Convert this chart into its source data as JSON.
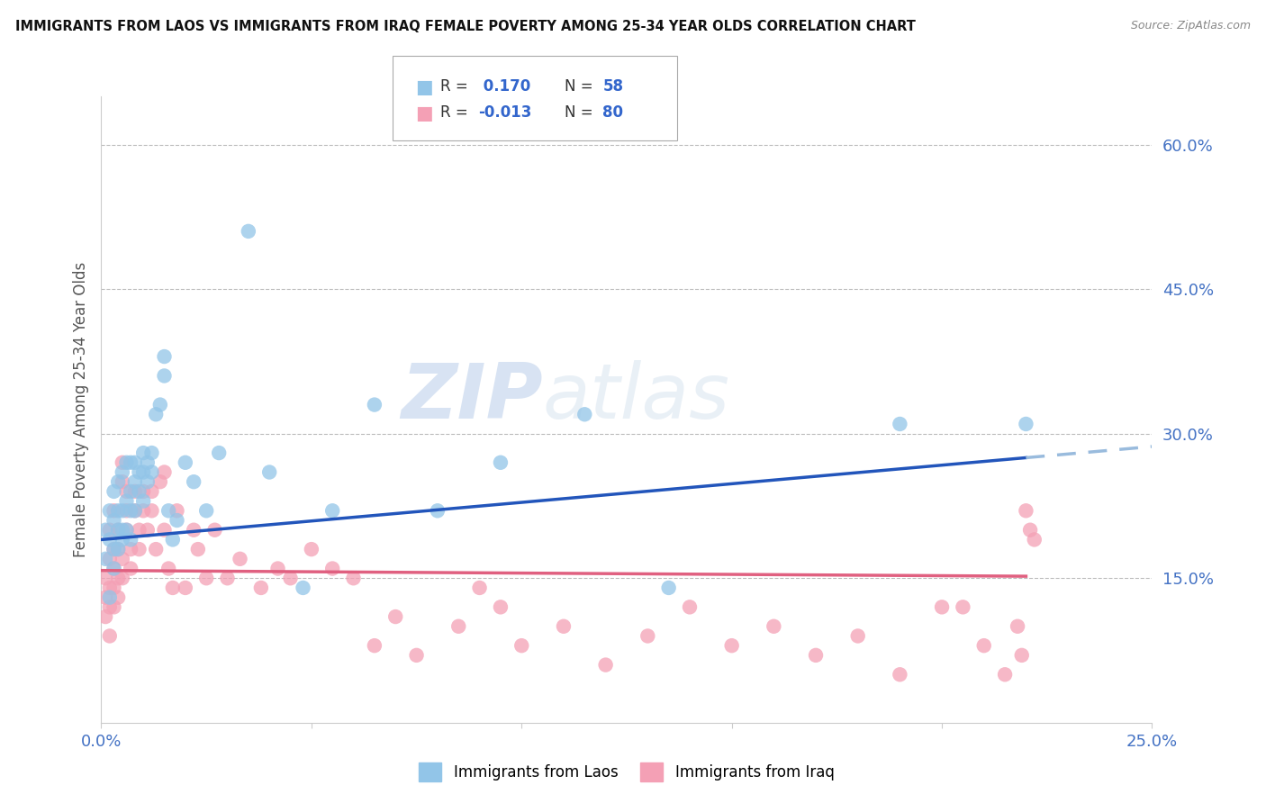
{
  "title": "IMMIGRANTS FROM LAOS VS IMMIGRANTS FROM IRAQ FEMALE POVERTY AMONG 25-34 YEAR OLDS CORRELATION CHART",
  "source": "Source: ZipAtlas.com",
  "ylabel": "Female Poverty Among 25-34 Year Olds",
  "xlim": [
    0.0,
    0.25
  ],
  "ylim": [
    0.0,
    0.65
  ],
  "right_yticks": [
    0.6,
    0.45,
    0.3,
    0.15
  ],
  "right_yticklabels": [
    "60.0%",
    "45.0%",
    "30.0%",
    "15.0%"
  ],
  "grid_yticks": [
    0.6,
    0.45,
    0.3,
    0.15
  ],
  "legend_r1": "R =  0.170",
  "legend_n1": "N = 58",
  "legend_r2": "R = -0.013",
  "legend_n2": "N = 80",
  "series1_color": "#92C5E8",
  "series2_color": "#F4A0B5",
  "line1_color": "#2255BB",
  "line2_color": "#E06080",
  "line1_dash_color": "#99BBDD",
  "watermark_zip": "ZIP",
  "watermark_atlas": "atlas",
  "laos_x": [
    0.001,
    0.001,
    0.002,
    0.002,
    0.002,
    0.003,
    0.003,
    0.003,
    0.003,
    0.004,
    0.004,
    0.004,
    0.004,
    0.005,
    0.005,
    0.005,
    0.005,
    0.006,
    0.006,
    0.006,
    0.007,
    0.007,
    0.007,
    0.007,
    0.008,
    0.008,
    0.008,
    0.009,
    0.009,
    0.01,
    0.01,
    0.01,
    0.011,
    0.011,
    0.012,
    0.012,
    0.013,
    0.014,
    0.015,
    0.015,
    0.016,
    0.017,
    0.018,
    0.02,
    0.022,
    0.025,
    0.028,
    0.035,
    0.04,
    0.048,
    0.055,
    0.065,
    0.08,
    0.095,
    0.115,
    0.135,
    0.19,
    0.22
  ],
  "laos_y": [
    0.17,
    0.2,
    0.13,
    0.19,
    0.22,
    0.18,
    0.21,
    0.16,
    0.24,
    0.2,
    0.22,
    0.25,
    0.18,
    0.2,
    0.22,
    0.26,
    0.19,
    0.23,
    0.27,
    0.2,
    0.22,
    0.24,
    0.27,
    0.19,
    0.22,
    0.25,
    0.27,
    0.24,
    0.26,
    0.28,
    0.23,
    0.26,
    0.25,
    0.27,
    0.26,
    0.28,
    0.32,
    0.33,
    0.36,
    0.38,
    0.22,
    0.19,
    0.21,
    0.27,
    0.25,
    0.22,
    0.28,
    0.51,
    0.26,
    0.14,
    0.22,
    0.33,
    0.22,
    0.27,
    0.32,
    0.14,
    0.31,
    0.31
  ],
  "iraq_x": [
    0.001,
    0.001,
    0.001,
    0.002,
    0.002,
    0.002,
    0.002,
    0.002,
    0.003,
    0.003,
    0.003,
    0.003,
    0.003,
    0.004,
    0.004,
    0.004,
    0.004,
    0.005,
    0.005,
    0.005,
    0.005,
    0.006,
    0.006,
    0.006,
    0.007,
    0.007,
    0.008,
    0.008,
    0.009,
    0.009,
    0.01,
    0.01,
    0.011,
    0.012,
    0.012,
    0.013,
    0.014,
    0.015,
    0.015,
    0.016,
    0.017,
    0.018,
    0.02,
    0.022,
    0.023,
    0.025,
    0.027,
    0.03,
    0.033,
    0.038,
    0.042,
    0.045,
    0.05,
    0.055,
    0.06,
    0.065,
    0.07,
    0.075,
    0.085,
    0.09,
    0.095,
    0.1,
    0.11,
    0.12,
    0.13,
    0.14,
    0.15,
    0.16,
    0.17,
    0.18,
    0.19,
    0.2,
    0.205,
    0.21,
    0.215,
    0.218,
    0.219,
    0.22,
    0.221,
    0.222
  ],
  "iraq_y": [
    0.15,
    0.13,
    0.11,
    0.17,
    0.14,
    0.12,
    0.2,
    0.09,
    0.16,
    0.18,
    0.14,
    0.12,
    0.22,
    0.15,
    0.18,
    0.2,
    0.13,
    0.25,
    0.27,
    0.15,
    0.17,
    0.2,
    0.22,
    0.24,
    0.18,
    0.16,
    0.22,
    0.24,
    0.2,
    0.18,
    0.22,
    0.24,
    0.2,
    0.22,
    0.24,
    0.18,
    0.25,
    0.26,
    0.2,
    0.16,
    0.14,
    0.22,
    0.14,
    0.2,
    0.18,
    0.15,
    0.2,
    0.15,
    0.17,
    0.14,
    0.16,
    0.15,
    0.18,
    0.16,
    0.15,
    0.08,
    0.11,
    0.07,
    0.1,
    0.14,
    0.12,
    0.08,
    0.1,
    0.06,
    0.09,
    0.12,
    0.08,
    0.1,
    0.07,
    0.09,
    0.05,
    0.12,
    0.12,
    0.08,
    0.05,
    0.1,
    0.07,
    0.22,
    0.2,
    0.19
  ]
}
